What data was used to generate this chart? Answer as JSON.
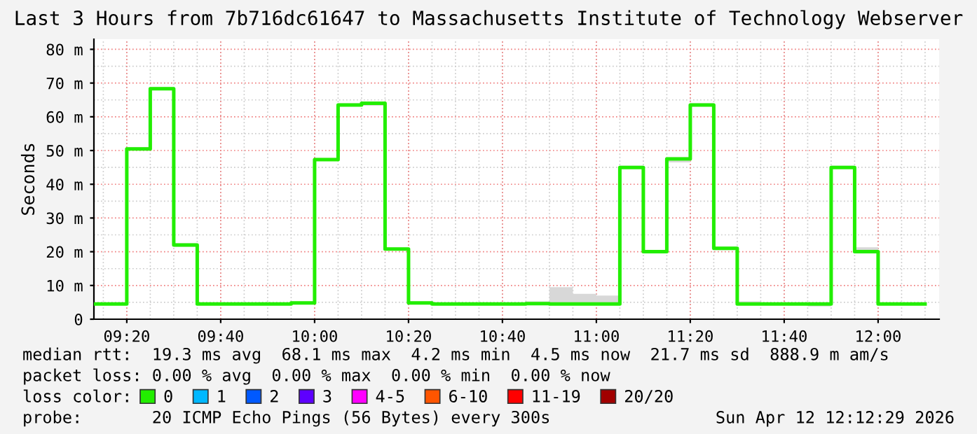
{
  "chart_data": {
    "type": "step",
    "title": "Last 3 Hours from 7b716dc61647 to Massachusetts Institute of Technology Webserver",
    "ylabel": "Seconds",
    "x": [
      "2026-04-12T09:13",
      "2026-04-12T09:20",
      "2026-04-12T09:25",
      "2026-04-12T09:30",
      "2026-04-12T09:35",
      "2026-04-12T09:40",
      "2026-04-12T09:45",
      "2026-04-12T09:50",
      "2026-04-12T09:55",
      "2026-04-12T10:00",
      "2026-04-12T10:05",
      "2026-04-12T10:10",
      "2026-04-12T10:15",
      "2026-04-12T10:20",
      "2026-04-12T10:25",
      "2026-04-12T10:30",
      "2026-04-12T10:35",
      "2026-04-12T10:40",
      "2026-04-12T10:45",
      "2026-04-12T10:50",
      "2026-04-12T10:55",
      "2026-04-12T11:00",
      "2026-04-12T11:05",
      "2026-04-12T11:10",
      "2026-04-12T11:15",
      "2026-04-12T11:20",
      "2026-04-12T11:25",
      "2026-04-12T11:30",
      "2026-04-12T11:35",
      "2026-04-12T11:40",
      "2026-04-12T11:45",
      "2026-04-12T11:50",
      "2026-04-12T11:55",
      "2026-04-12T12:00",
      "2026-04-12T12:05",
      "2026-04-12T12:10"
    ],
    "series": [
      {
        "name": "0",
        "color": "#22ee00",
        "values": [
          4.5,
          50.5,
          68.3,
          22,
          4.5,
          4.5,
          4.5,
          4.5,
          4.8,
          47.3,
          63.5,
          64,
          20.8,
          4.8,
          4.5,
          4.5,
          4.5,
          4.5,
          4.6,
          4.5,
          4.5,
          4.5,
          45,
          20,
          47.5,
          63.5,
          21,
          4.5,
          4.5,
          4.5,
          4.5,
          45,
          20,
          4.5,
          4.5,
          4.5
        ],
        "lower": [
          4.2,
          50.2,
          68,
          21.5,
          4.2,
          4.2,
          4.2,
          4.3,
          4.5,
          47,
          63.2,
          63.3,
          20.5,
          4.5,
          4.2,
          4.2,
          4.2,
          4.2,
          4.2,
          4.2,
          4.2,
          4.2,
          44.7,
          19.5,
          46.5,
          63.2,
          20.5,
          4.2,
          4.2,
          4.2,
          3.8,
          44.7,
          19.5,
          4.2,
          4.2,
          4.2
        ],
        "upper": [
          5,
          51,
          68.8,
          22.5,
          5,
          5,
          5,
          5,
          5.2,
          47.8,
          64,
          64.3,
          21.2,
          5.2,
          4.8,
          4.8,
          4.8,
          4.9,
          5.3,
          9.5,
          7.5,
          7,
          45.5,
          20.5,
          48,
          64,
          21.5,
          5.3,
          4.8,
          4.8,
          4.8,
          45.5,
          21.3,
          5,
          4.8,
          4.8
        ]
      },
      {
        "name": "1",
        "color": "#00b8ff",
        "values": [
          null,
          null,
          null,
          null,
          null,
          null,
          null,
          null,
          null,
          null,
          null,
          null,
          null,
          null,
          null,
          null,
          null,
          null,
          null,
          null,
          null,
          null,
          null,
          null,
          null,
          null,
          null,
          null,
          null,
          null,
          null,
          null,
          null,
          null,
          null,
          null
        ]
      },
      {
        "name": "2",
        "color": "#0059ff",
        "values": [
          null,
          null,
          null,
          null,
          null,
          null,
          null,
          null,
          null,
          null,
          null,
          null,
          null,
          null,
          null,
          null,
          null,
          null,
          null,
          null,
          null,
          null,
          null,
          null,
          null,
          null,
          null,
          null,
          null,
          null,
          null,
          null,
          null,
          null,
          null,
          null
        ]
      },
      {
        "name": "3",
        "color": "#5e00ff",
        "values": [
          null,
          null,
          null,
          null,
          null,
          null,
          null,
          null,
          null,
          null,
          null,
          null,
          null,
          null,
          null,
          null,
          null,
          null,
          null,
          null,
          null,
          null,
          null,
          null,
          null,
          null,
          null,
          null,
          null,
          null,
          null,
          null,
          null,
          null,
          null,
          null
        ]
      },
      {
        "name": "4-5",
        "color": "#ff00ff",
        "values": [
          null,
          null,
          null,
          null,
          null,
          null,
          null,
          null,
          null,
          null,
          null,
          null,
          null,
          null,
          null,
          null,
          null,
          null,
          null,
          null,
          null,
          null,
          null,
          null,
          null,
          null,
          null,
          null,
          null,
          null,
          null,
          null,
          null,
          null,
          null,
          null
        ]
      },
      {
        "name": "6-10",
        "color": "#ff5500",
        "values": [
          null,
          null,
          null,
          null,
          null,
          null,
          null,
          null,
          null,
          null,
          null,
          null,
          null,
          null,
          null,
          null,
          null,
          null,
          null,
          null,
          null,
          null,
          null,
          null,
          null,
          null,
          null,
          null,
          null,
          null,
          null,
          null,
          null,
          null,
          null,
          null
        ]
      },
      {
        "name": "11-19",
        "color": "#ff0000",
        "values": [
          null,
          null,
          null,
          null,
          null,
          null,
          null,
          null,
          null,
          null,
          null,
          null,
          null,
          null,
          null,
          null,
          null,
          null,
          null,
          null,
          null,
          null,
          null,
          null,
          null,
          null,
          null,
          null,
          null,
          null,
          null,
          null,
          null,
          null,
          null,
          null
        ]
      },
      {
        "name": "20/20",
        "color": "#a10000",
        "values": [
          null,
          null,
          null,
          null,
          null,
          null,
          null,
          null,
          null,
          null,
          null,
          null,
          null,
          null,
          null,
          null,
          null,
          null,
          null,
          null,
          null,
          null,
          null,
          null,
          null,
          null,
          null,
          null,
          null,
          null,
          null,
          null,
          null,
          null,
          null,
          null
        ]
      }
    ],
    "legend": "bottom",
    "legend_title": "loss color:",
    "grid": true,
    "xlim": [
      "2026-04-12T09:13",
      "2026-04-12T12:13"
    ],
    "xticks": [
      {
        "value": "2026-04-12T09:20",
        "label": "09:20"
      },
      {
        "value": "2026-04-12T09:40",
        "label": "09:40"
      },
      {
        "value": "2026-04-12T10:00",
        "label": "10:00"
      },
      {
        "value": "2026-04-12T10:20",
        "label": "10:20"
      },
      {
        "value": "2026-04-12T10:40",
        "label": "10:40"
      },
      {
        "value": "2026-04-12T11:00",
        "label": "11:00"
      },
      {
        "value": "2026-04-12T11:20",
        "label": "11:20"
      },
      {
        "value": "2026-04-12T11:40",
        "label": "11:40"
      },
      {
        "value": "2026-04-12T12:00",
        "label": "12:00"
      }
    ],
    "ylim": [
      0,
      83
    ],
    "yticks": [
      {
        "value": 0,
        "label": "0"
      },
      {
        "value": 10,
        "label": "10 m"
      },
      {
        "value": 20,
        "label": "20 m"
      },
      {
        "value": 30,
        "label": "30 m"
      },
      {
        "value": 40,
        "label": "40 m"
      },
      {
        "value": 50,
        "label": "50 m"
      },
      {
        "value": 60,
        "label": "60 m"
      },
      {
        "value": 70,
        "label": "70 m"
      },
      {
        "value": 80,
        "label": "80 m"
      }
    ],
    "annotations": [
      "median rtt:  19.3 ms avg  68.1 ms max  4.2 ms min  4.5 ms now  21.7 ms sd  888.9 m am/s",
      "packet loss: 0.00 % avg  0.00 % max  0.00 % min  0.00 % now",
      "probe:       20 ICMP Echo Pings (56 Bytes) every 300s",
      "Sun Apr 12 12:12:29 2026"
    ]
  }
}
